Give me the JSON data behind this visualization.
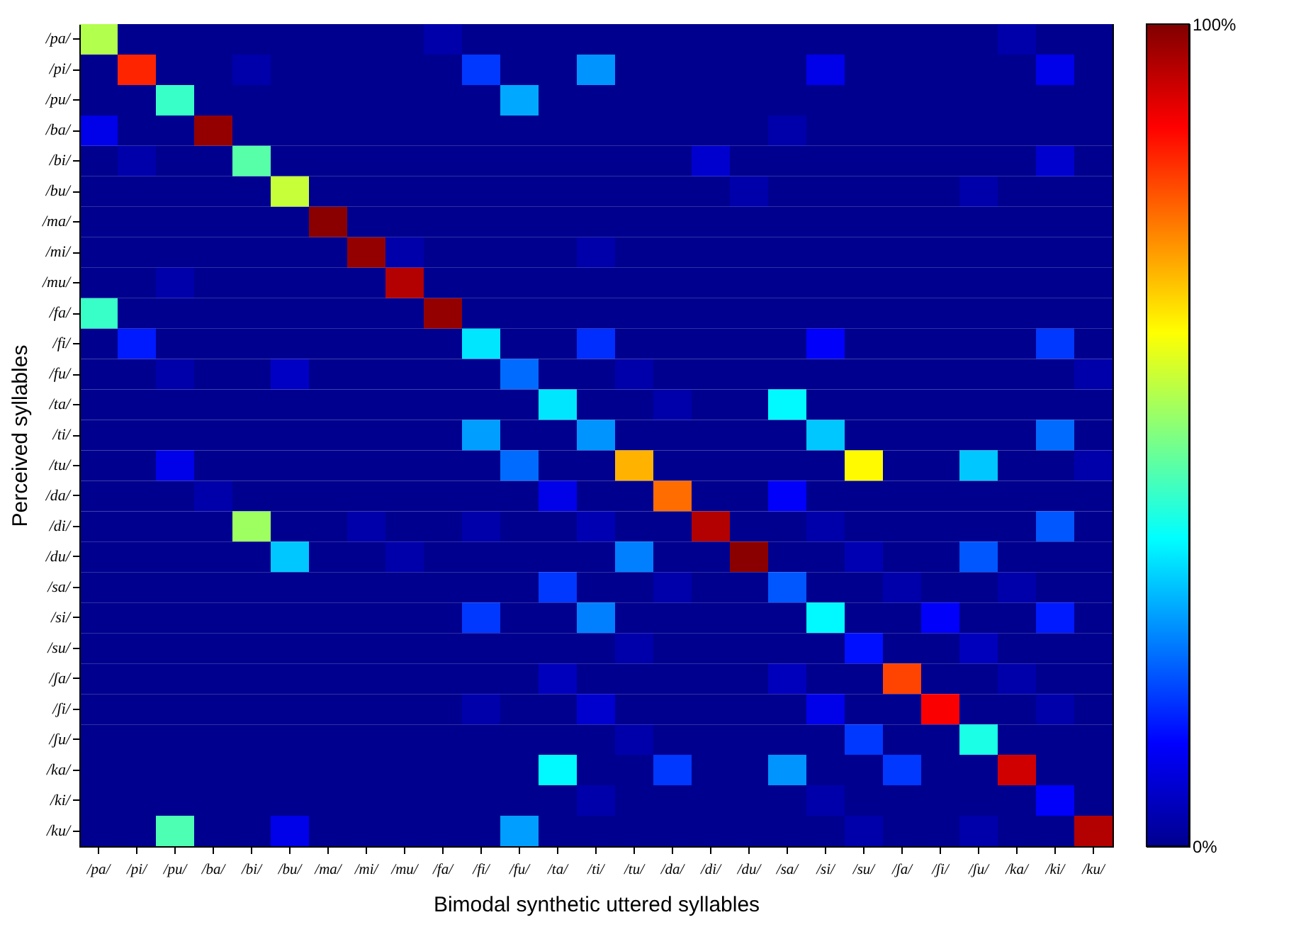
{
  "chart_data": {
    "type": "heatmap",
    "xlabel": "Bimodal synthetic uttered syllables",
    "ylabel": "Perceived syllables",
    "categories": [
      "/pa/",
      "/pi/",
      "/pu/",
      "/ba/",
      "/bi/",
      "/bu/",
      "/ma/",
      "/mi/",
      "/mu/",
      "/fa/",
      "/fi/",
      "/fu/",
      "/ta/",
      "/ti/",
      "/tu/",
      "/da/",
      "/di/",
      "/du/",
      "/sa/",
      "/si/",
      "/su/",
      "/ʃa/",
      "/ʃi/",
      "/ʃu/",
      "/ka/",
      "/ki/",
      "/ku/"
    ],
    "y_categories": [
      "/pa/",
      "/pi/",
      "/pu/",
      "/ba/",
      "/bi/",
      "/bu/",
      "/ma/",
      "/mi/",
      "/mu/",
      "/fa/",
      "/fi/",
      "/fu/",
      "/ta/",
      "/ti/",
      "/tu/",
      "/da/",
      "/di/",
      "/du/",
      "/sa/",
      "/si/",
      "/su/",
      "/ʃa/",
      "/ʃi/",
      "/ʃu/",
      "/ka/",
      "/ki/",
      "/ku/"
    ],
    "cells": [
      [
        55,
        0,
        0,
        0,
        0,
        0,
        0,
        0,
        0,
        3,
        0,
        0,
        0,
        0,
        0,
        0,
        0,
        0,
        0,
        0,
        0,
        0,
        0,
        0,
        3,
        0,
        0
      ],
      [
        0,
        84,
        0,
        0,
        3,
        0,
        0,
        0,
        0,
        0,
        18,
        0,
        0,
        27,
        0,
        0,
        0,
        0,
        0,
        10,
        0,
        0,
        0,
        0,
        0,
        10,
        0
      ],
      [
        0,
        0,
        43,
        0,
        0,
        0,
        0,
        0,
        0,
        0,
        0,
        29,
        0,
        0,
        0,
        0,
        0,
        0,
        0,
        0,
        0,
        0,
        0,
        0,
        0,
        0,
        0
      ],
      [
        10,
        0,
        0,
        98,
        0,
        0,
        0,
        0,
        0,
        0,
        0,
        0,
        0,
        0,
        0,
        0,
        0,
        0,
        3,
        0,
        0,
        0,
        0,
        0,
        0,
        0,
        0
      ],
      [
        0,
        3,
        0,
        0,
        46,
        0,
        0,
        0,
        0,
        0,
        0,
        0,
        0,
        0,
        0,
        0,
        7,
        0,
        0,
        0,
        0,
        0,
        0,
        0,
        0,
        7,
        0
      ],
      [
        0,
        0,
        0,
        0,
        0,
        57,
        0,
        0,
        0,
        0,
        0,
        0,
        0,
        0,
        0,
        0,
        0,
        3,
        0,
        0,
        0,
        0,
        0,
        3,
        0,
        0,
        0
      ],
      [
        0,
        0,
        0,
        0,
        0,
        0,
        99,
        0,
        0,
        0,
        0,
        0,
        0,
        0,
        0,
        0,
        0,
        0,
        0,
        0,
        0,
        0,
        0,
        0,
        0,
        0,
        0
      ],
      [
        0,
        0,
        0,
        0,
        0,
        0,
        0,
        98,
        3,
        0,
        0,
        0,
        0,
        3,
        0,
        0,
        0,
        0,
        0,
        0,
        0,
        0,
        0,
        0,
        0,
        0,
        0
      ],
      [
        0,
        0,
        3,
        0,
        0,
        0,
        0,
        0,
        95,
        0,
        0,
        0,
        0,
        0,
        0,
        0,
        0,
        0,
        0,
        0,
        0,
        0,
        0,
        0,
        0,
        0,
        0
      ],
      [
        43,
        0,
        0,
        0,
        0,
        0,
        0,
        0,
        0,
        98,
        0,
        0,
        0,
        0,
        0,
        0,
        0,
        0,
        0,
        0,
        0,
        0,
        0,
        0,
        0,
        0,
        0
      ],
      [
        0,
        15,
        0,
        0,
        0,
        0,
        0,
        0,
        0,
        0,
        35,
        0,
        0,
        17,
        0,
        0,
        0,
        0,
        0,
        12,
        0,
        0,
        0,
        0,
        0,
        18,
        0
      ],
      [
        0,
        0,
        3,
        0,
        0,
        6,
        0,
        0,
        0,
        0,
        0,
        23,
        0,
        0,
        3,
        0,
        0,
        0,
        0,
        0,
        0,
        0,
        0,
        0,
        0,
        0,
        3
      ],
      [
        0,
        0,
        0,
        0,
        0,
        0,
        0,
        0,
        0,
        0,
        0,
        0,
        35,
        0,
        0,
        3,
        0,
        0,
        37,
        0,
        0,
        0,
        0,
        0,
        0,
        0,
        0
      ],
      [
        0,
        0,
        0,
        0,
        0,
        0,
        0,
        0,
        0,
        0,
        28,
        0,
        0,
        27,
        0,
        0,
        0,
        0,
        0,
        32,
        0,
        0,
        0,
        0,
        0,
        23,
        0
      ],
      [
        0,
        0,
        10,
        0,
        0,
        0,
        0,
        0,
        0,
        0,
        0,
        23,
        0,
        0,
        70,
        0,
        0,
        0,
        0,
        0,
        63,
        0,
        0,
        32,
        0,
        0,
        3
      ],
      [
        0,
        0,
        0,
        3,
        0,
        0,
        0,
        0,
        0,
        0,
        0,
        0,
        10,
        0,
        0,
        77,
        0,
        0,
        12,
        0,
        0,
        0,
        0,
        0,
        0,
        0,
        0
      ],
      [
        0,
        0,
        0,
        0,
        53,
        0,
        0,
        3,
        0,
        0,
        3,
        0,
        0,
        4,
        0,
        0,
        95,
        0,
        0,
        3,
        0,
        0,
        0,
        0,
        0,
        21,
        0
      ],
      [
        0,
        0,
        0,
        0,
        0,
        32,
        0,
        0,
        3,
        0,
        0,
        0,
        0,
        0,
        25,
        0,
        0,
        99,
        0,
        0,
        4,
        0,
        0,
        21,
        0,
        0,
        0
      ],
      [
        0,
        0,
        0,
        0,
        0,
        0,
        0,
        0,
        0,
        0,
        0,
        0,
        18,
        0,
        0,
        3,
        0,
        0,
        21,
        0,
        0,
        3,
        0,
        0,
        3,
        0,
        0
      ],
      [
        0,
        0,
        0,
        0,
        0,
        0,
        0,
        0,
        0,
        0,
        18,
        0,
        0,
        25,
        0,
        0,
        0,
        0,
        0,
        37,
        0,
        0,
        12,
        0,
        0,
        15,
        0
      ],
      [
        0,
        0,
        0,
        0,
        0,
        0,
        0,
        0,
        0,
        0,
        0,
        0,
        0,
        0,
        3,
        0,
        0,
        0,
        0,
        0,
        14,
        0,
        0,
        5,
        0,
        0,
        0
      ],
      [
        0,
        0,
        0,
        0,
        0,
        0,
        0,
        0,
        0,
        0,
        0,
        0,
        5,
        0,
        0,
        0,
        0,
        0,
        5,
        0,
        0,
        81,
        0,
        0,
        3,
        0,
        0
      ],
      [
        0,
        0,
        0,
        0,
        0,
        0,
        0,
        0,
        0,
        0,
        3,
        0,
        0,
        7,
        0,
        0,
        0,
        0,
        0,
        10,
        0,
        0,
        88,
        0,
        0,
        3,
        0
      ],
      [
        0,
        0,
        0,
        0,
        0,
        0,
        0,
        0,
        0,
        0,
        0,
        0,
        0,
        0,
        3,
        0,
        0,
        0,
        0,
        0,
        18,
        0,
        0,
        40,
        0,
        0,
        0
      ],
      [
        0,
        0,
        0,
        0,
        0,
        0,
        0,
        0,
        0,
        0,
        0,
        0,
        37,
        0,
        0,
        18,
        0,
        0,
        27,
        0,
        0,
        18,
        0,
        0,
        92,
        0,
        0
      ],
      [
        0,
        0,
        0,
        0,
        0,
        0,
        0,
        0,
        0,
        0,
        0,
        0,
        0,
        3,
        0,
        0,
        0,
        0,
        0,
        3,
        0,
        0,
        0,
        0,
        0,
        12,
        0
      ],
      [
        0,
        0,
        45,
        0,
        0,
        10,
        0,
        0,
        0,
        0,
        0,
        28,
        0,
        0,
        0,
        0,
        0,
        0,
        0,
        0,
        3,
        0,
        0,
        3,
        0,
        0,
        95
      ]
    ],
    "clim": [
      0,
      100
    ],
    "cticks": [
      {
        "value": 0,
        "label": "0%"
      },
      {
        "value": 100,
        "label": "100%"
      }
    ]
  }
}
